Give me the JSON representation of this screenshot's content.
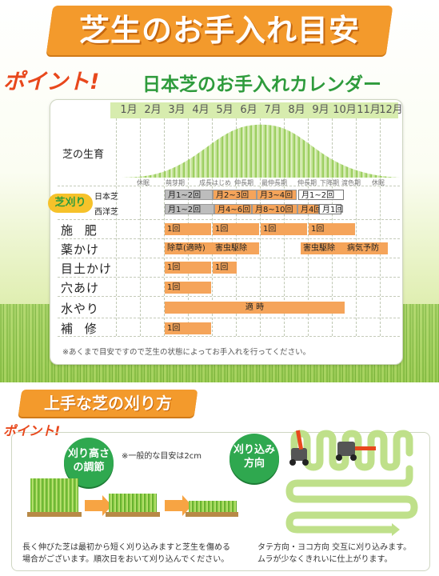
{
  "header": {
    "title": "芝生のお手入れ目安"
  },
  "calendar": {
    "point_label": "ポイント!",
    "title": "日本芝のお手入れカレンダー",
    "months": [
      "1月",
      "2月",
      "3月",
      "4月",
      "5月",
      "6月",
      "7月",
      "8月",
      "9月",
      "10月",
      "11月",
      "12月"
    ],
    "growth_label": "芝の生育",
    "stages": [
      "休眠",
      "萌芽期",
      "成長はじめ",
      "伸長期",
      "最伸長期",
      "伸長期",
      "下降期",
      "渡色期",
      "休眠"
    ],
    "mowing": {
      "label": "芝刈り",
      "japanese_label": "日本芝",
      "western_label": "西洋芝",
      "japanese": [
        "月1~2回",
        "月2~3回",
        "月3~4回",
        "月1~2回"
      ],
      "western": [
        "月1~2回",
        "月4~6回",
        "月8~10回",
        "月4回",
        "月1回"
      ]
    },
    "rows": {
      "fertilizer": {
        "label": "施 肥",
        "values": [
          "1回",
          "1回",
          "1回",
          "1回"
        ]
      },
      "chemicals": {
        "label": "薬かけ",
        "values": [
          "除草(適時)",
          "害虫駆除",
          "害虫駆除",
          "病気予防"
        ]
      },
      "topdressing": {
        "label": "目土かけ",
        "values": [
          "1回",
          "1回"
        ]
      },
      "aeration": {
        "label": "穴あけ",
        "values": [
          "1回"
        ]
      },
      "watering": {
        "label": "水やり",
        "values": [
          "適 時"
        ]
      },
      "repair": {
        "label": "補 修",
        "values": [
          "1回"
        ]
      }
    },
    "note": "※あくまで目安ですので芝生の状態によってお手入れを行ってください。"
  },
  "mowing_guide": {
    "title": "上手な芝の刈り方",
    "point_label": "ポイント!",
    "height": {
      "badge_line1": "刈り高さ",
      "badge_line2": "の調節",
      "note": "※一般的な目安は2cm",
      "desc_line1": "長く伸びた芝は最初から短く刈り込みますと芝生を傷める",
      "desc_line2": "場合がございます。順次日をおいて刈り込んでください。"
    },
    "direction": {
      "badge_line1": "刈り込み",
      "badge_line2": "方向",
      "desc_line1": "タテ方向・ヨコ方向 交互に刈り込みます。",
      "desc_line2": "ムラが少なくきれいに仕上がります。"
    }
  },
  "colors": {
    "accent": "#f39a2c",
    "green": "#2e9b3c",
    "bar": "#f5a45a",
    "red": "#e8481c"
  }
}
